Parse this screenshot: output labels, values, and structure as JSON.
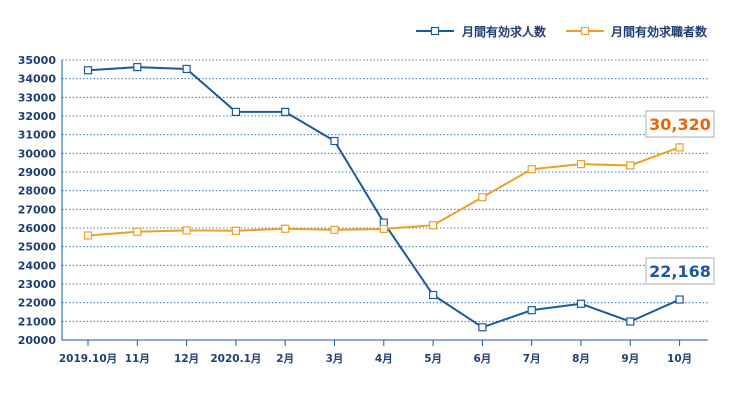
{
  "chart_data": {
    "type": "line",
    "categories": [
      "2019.10月",
      "11月",
      "12月",
      "2020.1月",
      "2月",
      "3月",
      "4月",
      "5月",
      "6月",
      "7月",
      "8月",
      "9月",
      "10月"
    ],
    "series": [
      {
        "name": "月間有効求人数",
        "color": "#1a5a9e",
        "values": [
          34450,
          34620,
          34520,
          32220,
          32220,
          30660,
          26290,
          22410,
          20680,
          21600,
          21940,
          20990,
          22168
        ]
      },
      {
        "name": "月間有効求職者数",
        "color": "#f0a020",
        "values": [
          25600,
          25800,
          25870,
          25850,
          25960,
          25900,
          25950,
          26150,
          27650,
          29150,
          29420,
          29350,
          30320
        ]
      }
    ],
    "annotations": [
      {
        "text": "30,320",
        "color": "#e8650a",
        "series": 1,
        "index": 12
      },
      {
        "text": "22,168",
        "color": "#1a5a9e",
        "series": 0,
        "index": 12
      }
    ],
    "yticks": [
      20000,
      21000,
      22000,
      23000,
      24000,
      25000,
      26000,
      27000,
      28000,
      29000,
      30000,
      31000,
      32000,
      33000,
      34000,
      35000
    ],
    "ylim": [
      20000,
      35000
    ],
    "grid": true,
    "legend_position": "top-right"
  }
}
